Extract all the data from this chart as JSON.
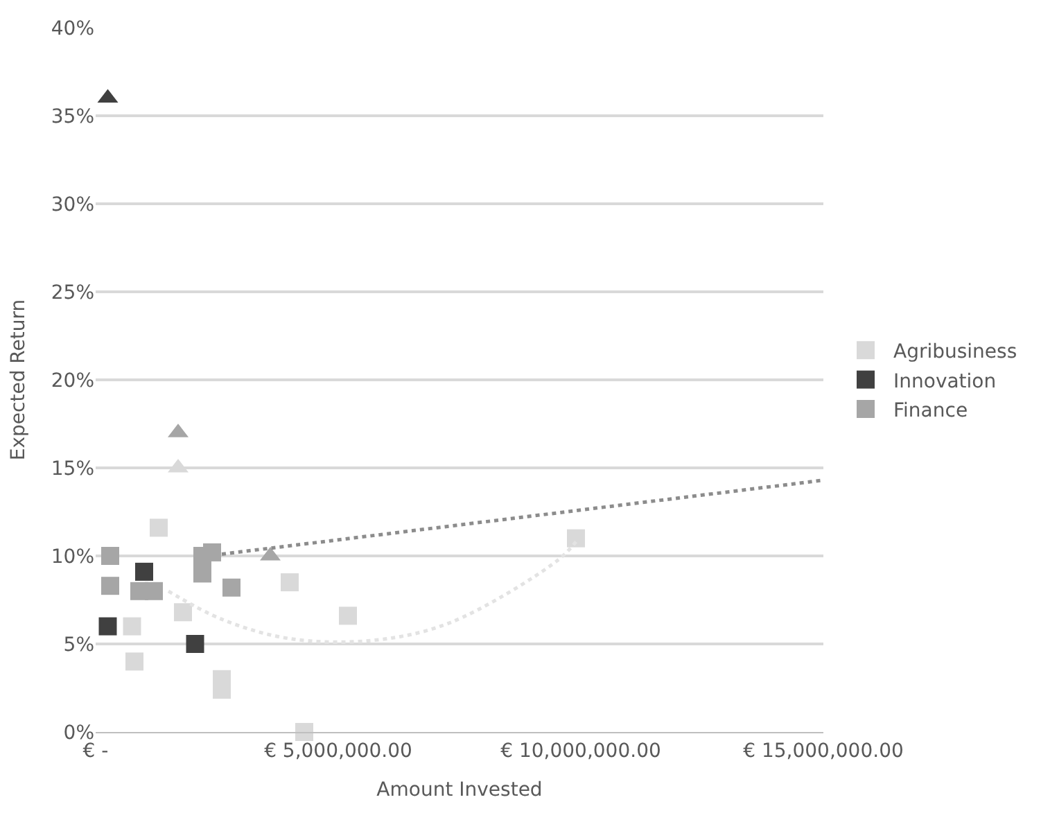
{
  "chart_data": {
    "type": "scatter",
    "xlabel": "Amount Invested",
    "ylabel": "Expected Return",
    "series": [
      {
        "name": "Agribusiness",
        "color": "#d9d9d9",
        "marker": "square",
        "x": [
          1300000,
          750000,
          800000,
          2600000,
          2600000,
          4300000,
          4000000,
          5200000,
          1800000,
          9900000
        ],
        "values": [
          11.6,
          6,
          4,
          3,
          2.4,
          0,
          8.5,
          6.6,
          6.8,
          11
        ]
      },
      {
        "name": "Innovation",
        "color": "#404040",
        "marker": "square",
        "x": [
          250000,
          1000000,
          2050000
        ],
        "values": [
          6,
          9.1,
          5
        ]
      },
      {
        "name": "Finance",
        "color": "#a6a6a6",
        "marker": "square",
        "x": [
          300000,
          300000,
          900000,
          1200000,
          2200000,
          2200000,
          2400000,
          2800000
        ],
        "values": [
          10,
          8.3,
          8,
          8,
          10,
          9,
          10.2,
          8.2
        ]
      },
      {
        "color": "#d9d9d9",
        "marker": "triangle",
        "x": [
          1700000
        ],
        "values": [
          15
        ]
      },
      {
        "color": "#404040",
        "marker": "triangle",
        "x": [
          250000
        ],
        "values": [
          36
        ]
      },
      {
        "color": "#a6a6a6",
        "marker": "triangle",
        "x": [
          1700000,
          3600000
        ],
        "values": [
          17,
          10
        ]
      },
      {
        "type": "line",
        "color": "#e3e3e3",
        "marker": "none",
        "line_style": "dotted",
        "x": [
          1500000,
          2600000,
          4000000,
          5700000,
          7300000,
          9500000,
          9900000
        ],
        "values": [
          8,
          6.4,
          5.3,
          5.2,
          6.2,
          9.7,
          10.8
        ]
      },
      {
        "type": "line",
        "color": "#8c8c8c",
        "marker": "none",
        "line_style": "dotted",
        "x": [
          2600000,
          15000000
        ],
        "values": [
          10.1,
          14.3
        ]
      }
    ],
    "xlim": [
      0,
      15000000
    ],
    "xticks": [
      {
        "value": 0,
        "label": "€ -"
      },
      {
        "value": 5000000,
        "label": "€ 5,000,000.00"
      },
      {
        "value": 10000000,
        "label": "€ 10,000,000.00"
      },
      {
        "value": 15000000,
        "label": "€ 15,000,000.00"
      }
    ],
    "ylim": [
      0,
      40
    ],
    "yticks": [
      {
        "value": 0,
        "label": "0%"
      },
      {
        "value": 5,
        "label": "5%"
      },
      {
        "value": 10,
        "label": "10%"
      },
      {
        "value": 15,
        "label": "15%"
      },
      {
        "value": 20,
        "label": "20%"
      },
      {
        "value": 25,
        "label": "25%"
      },
      {
        "value": 30,
        "label": "30%"
      },
      {
        "value": 35,
        "label": "35%"
      },
      {
        "value": 40,
        "label": "40%"
      }
    ],
    "grid": "y",
    "legend": "right"
  }
}
